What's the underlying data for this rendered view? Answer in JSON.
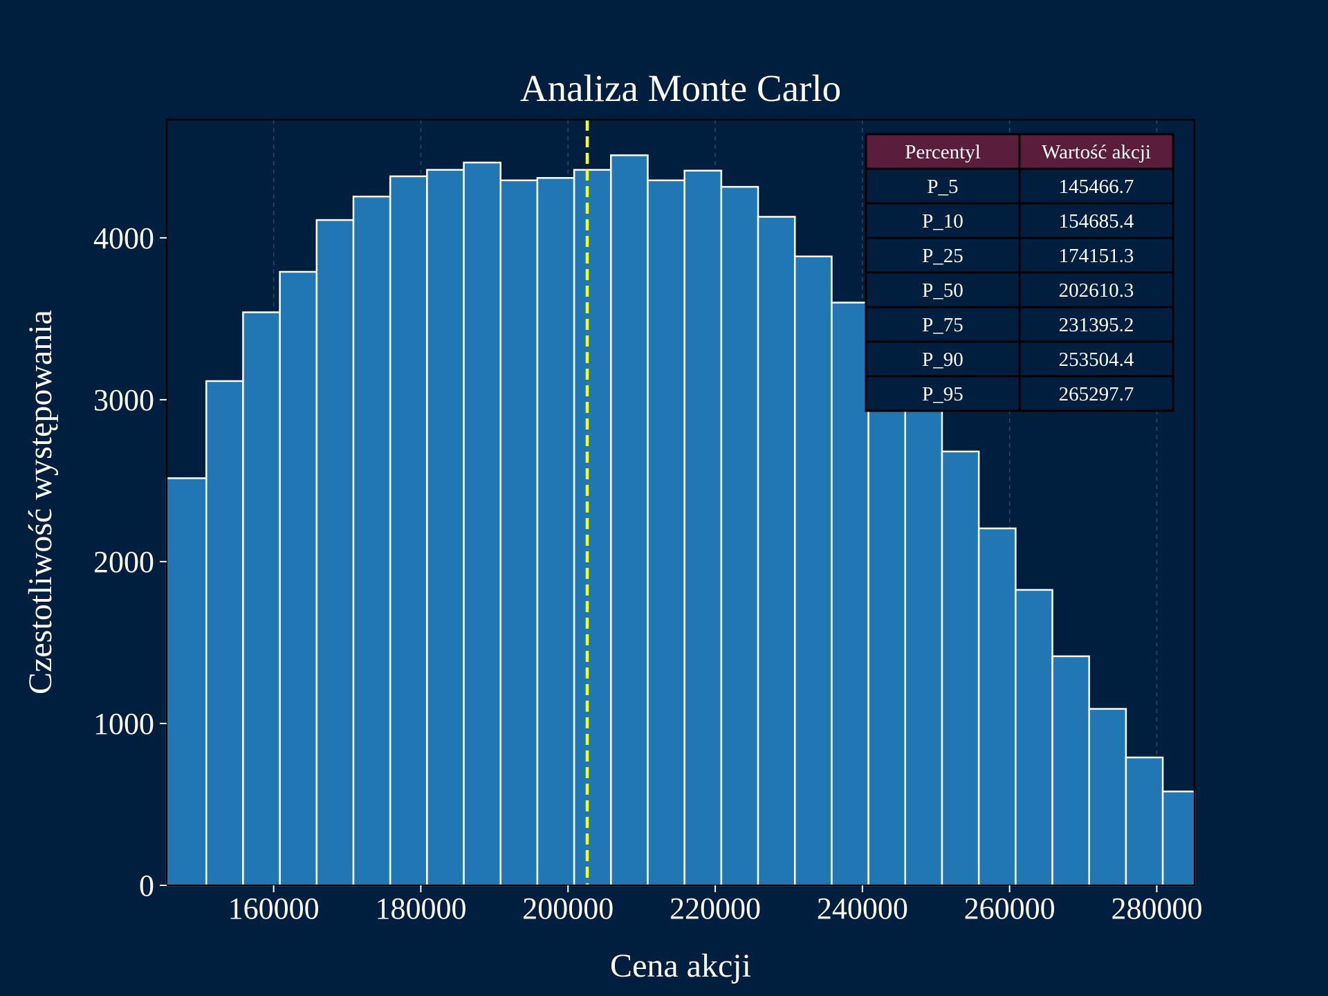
{
  "chart_data": {
    "type": "bar",
    "title": "Analiza Monte Carlo",
    "xlabel": "Cena akcji",
    "ylabel": "Czestotliwość występowania",
    "xlim": [
      145466.7,
      285127.1
    ],
    "ylim": [
      0,
      4730
    ],
    "bin_edges": [
      145466.7,
      150846.3,
      155845.0,
      160843.7,
      165842.4,
      170841.1,
      175839.8,
      180838.5,
      185837.2,
      190835.9,
      195834.6,
      200833.3,
      205832.0,
      210830.7,
      215829.4,
      220828.1,
      225826.8,
      230825.5,
      235824.2,
      240822.9,
      245821.6,
      250820.3,
      255819.0,
      260817.7,
      265816.4,
      270815.1,
      275813.8,
      280812.5,
      285127.1
    ],
    "values": [
      2515,
      3115,
      3540,
      3790,
      4110,
      4255,
      4380,
      4420,
      4465,
      4355,
      4370,
      4420,
      4510,
      4355,
      4415,
      4315,
      4130,
      3885,
      3600,
      3420,
      3015,
      2680,
      2205,
      1825,
      1415,
      1090,
      790,
      580
    ],
    "xticks": [
      160000,
      180000,
      200000,
      220000,
      240000,
      260000,
      280000
    ],
    "yticks": [
      0,
      1000,
      2000,
      3000,
      4000
    ],
    "median_line": 202610.3,
    "grid": "x-dashed",
    "colors": {
      "background": "#001f3f",
      "bar_fill": "#2077b4",
      "bar_edge": "#ffffff",
      "median_line": "#ffff00",
      "table_header": "#5a1e3c",
      "text": "#ffffff"
    },
    "table": {
      "headers": [
        "Percentyl",
        "Wartość akcji"
      ],
      "rows": [
        [
          "P_5",
          "145466.7"
        ],
        [
          "P_10",
          "154685.4"
        ],
        [
          "P_25",
          "174151.3"
        ],
        [
          "P_50",
          "202610.3"
        ],
        [
          "P_75",
          "231395.2"
        ],
        [
          "P_90",
          "253504.4"
        ],
        [
          "P_95",
          "265297.7"
        ]
      ]
    }
  }
}
